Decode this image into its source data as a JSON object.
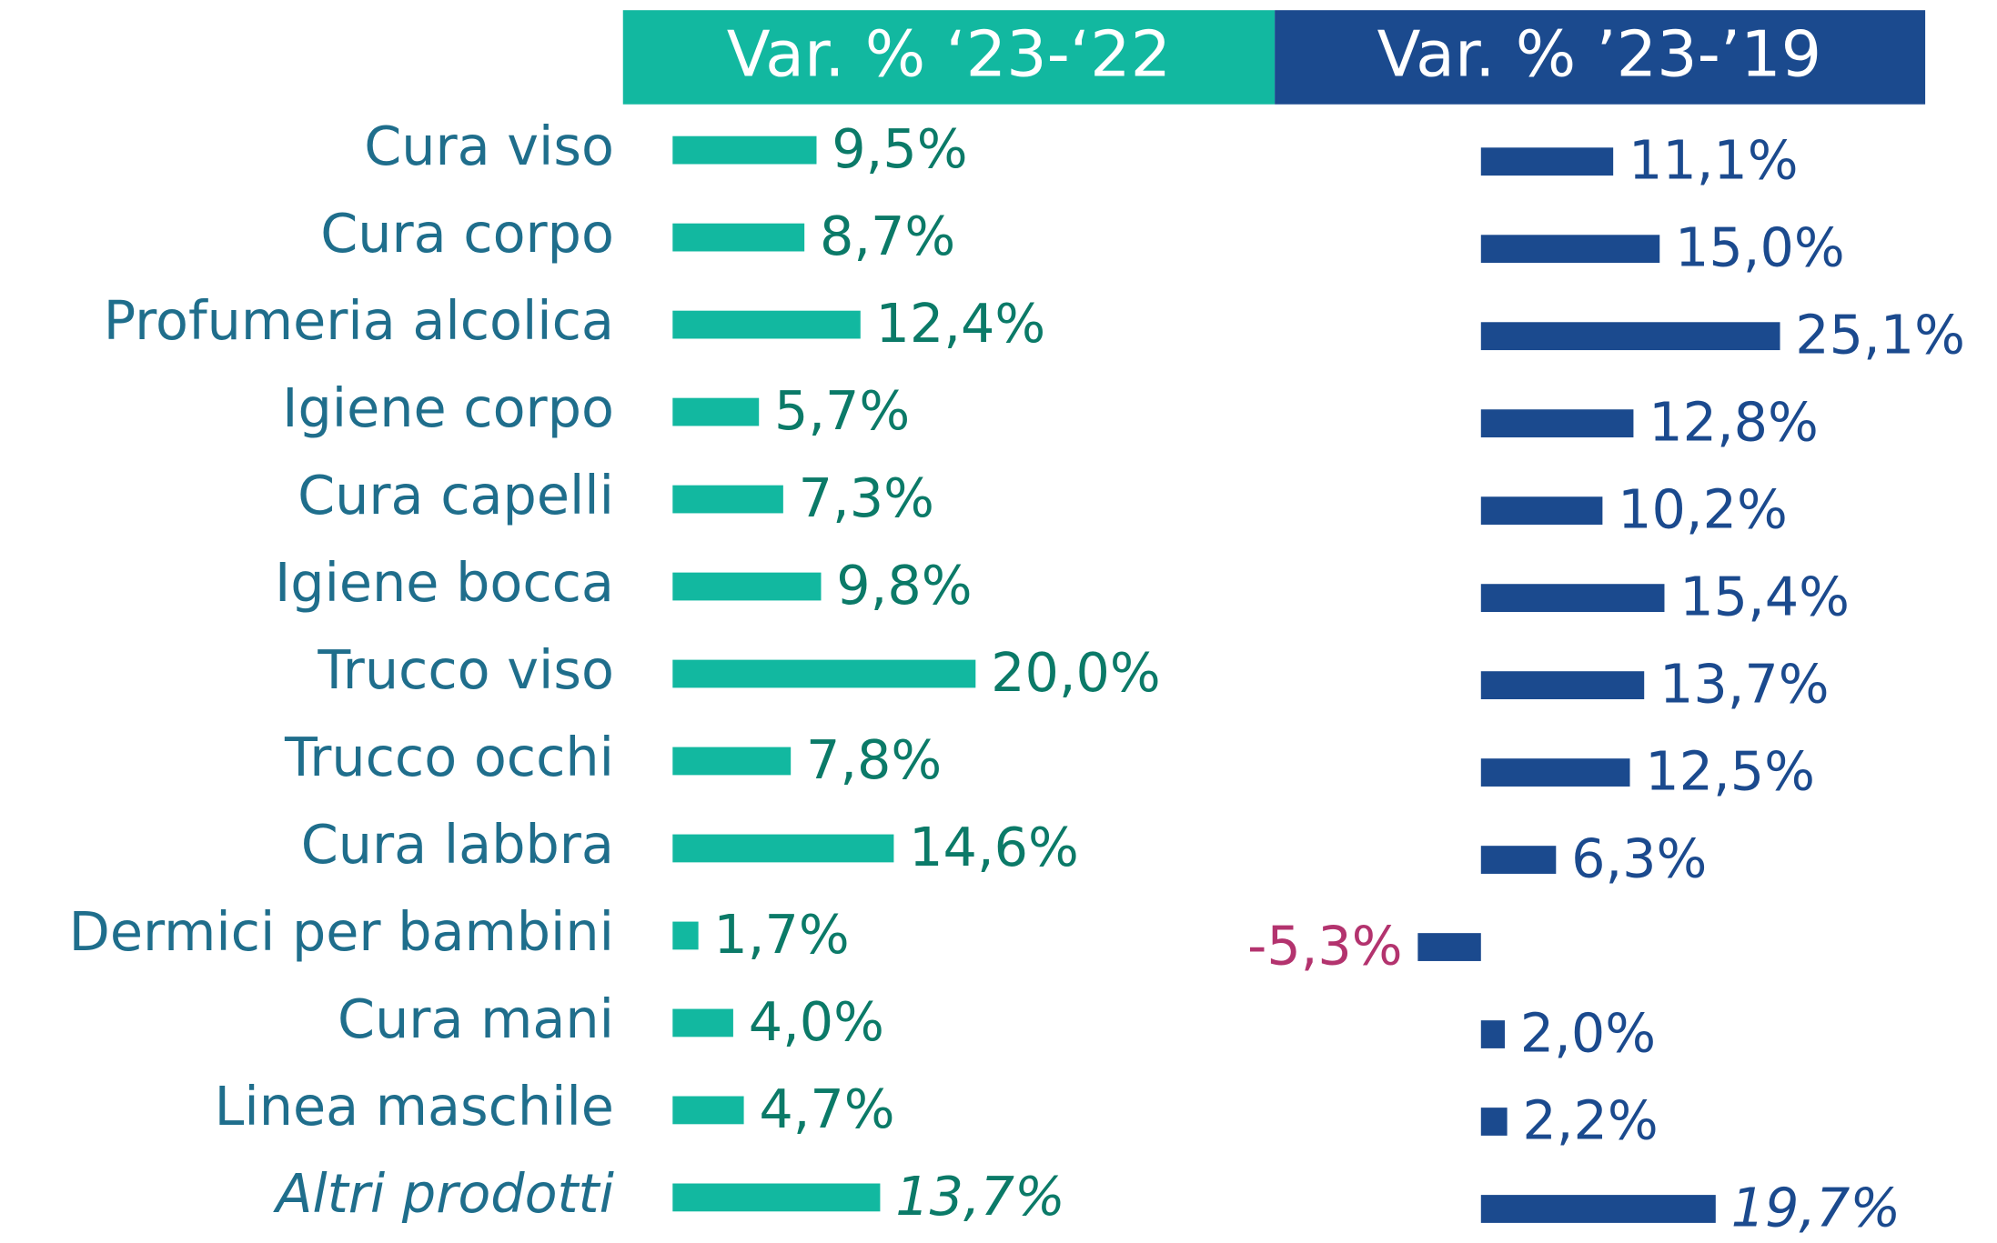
{
  "chart_data": {
    "type": "bar",
    "orientation": "horizontal",
    "categories": [
      "Cura viso",
      "Cura corpo",
      "Profumeria alcolica",
      "Igiene corpo",
      "Cura capelli",
      "Igiene bocca",
      "Trucco viso",
      "Trucco occhi",
      "Cura labbra",
      "Dermici per bambini",
      "Cura mani",
      "Linea maschile",
      "Altri prodotti"
    ],
    "series": [
      {
        "name": "Var. % ‘23-‘22",
        "color": "#12b8a0",
        "label_color": "#0b7a68",
        "values": [
          9.5,
          8.7,
          12.4,
          5.7,
          7.3,
          9.8,
          20.0,
          7.8,
          14.6,
          1.7,
          4.0,
          4.7,
          13.7
        ],
        "value_labels": [
          "9,5%",
          "8,7%",
          "12,4%",
          "5,7%",
          "7,3%",
          "9,8%",
          "20,0%",
          "7,8%",
          "14,6%",
          "1,7%",
          "4,0%",
          "4,7%",
          "13,7%"
        ]
      },
      {
        "name": "Var. % ’23-’19",
        "color": "#1b4a8e",
        "label_color": "#1b4a8e",
        "negative_label_color": "#b3336e",
        "values": [
          11.1,
          15.0,
          25.1,
          12.8,
          10.2,
          15.4,
          13.7,
          12.5,
          6.3,
          -5.3,
          2.0,
          2.2,
          19.7
        ],
        "value_labels": [
          "11,1%",
          "15,0%",
          "25,1%",
          "12,8%",
          "10,2%",
          "15,4%",
          "13,7%",
          "12,5%",
          "6,3%",
          "-5,3%",
          "2,0%",
          "2,2%",
          "19,7%"
        ]
      }
    ]
  }
}
